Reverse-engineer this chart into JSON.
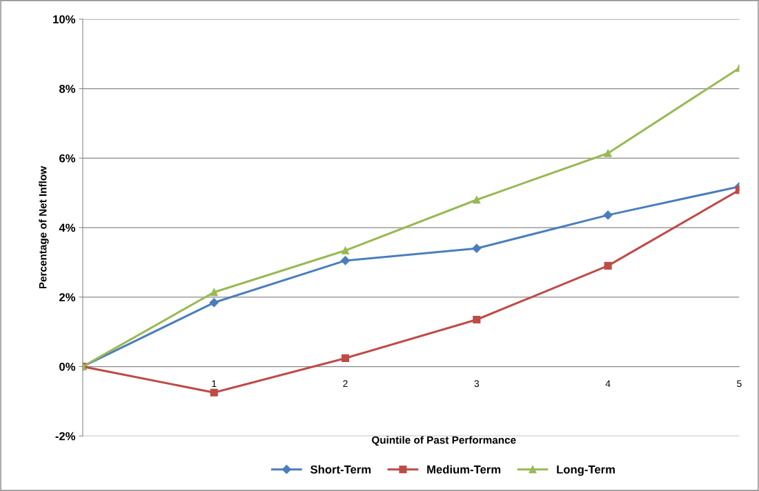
{
  "chart_data": {
    "type": "line",
    "xlabel": "Quintile of Past Performance",
    "ylabel": "Percentage of Net Inflow",
    "x": [
      0,
      1,
      2,
      3,
      4,
      5
    ],
    "series": [
      {
        "name": "Short-Term",
        "color": "#4a7ebb",
        "marker": "diamond",
        "values": [
          0,
          1.84,
          3.05,
          3.4,
          4.36,
          5.18
        ]
      },
      {
        "name": "Medium-Term",
        "color": "#be4b48",
        "marker": "square",
        "values": [
          0,
          -0.75,
          0.24,
          1.35,
          2.9,
          5.08
        ]
      },
      {
        "name": "Long-Term",
        "color": "#98b954",
        "marker": "triangle",
        "values": [
          0,
          2.14,
          3.34,
          4.8,
          6.14,
          8.59
        ]
      }
    ],
    "xlim": [
      0,
      5
    ],
    "xticks": [
      1,
      2,
      3,
      4,
      5
    ],
    "ylim": [
      -2,
      10
    ],
    "yticks": [
      {
        "value": -2,
        "label": "-2%"
      },
      {
        "value": 0,
        "label": "0%"
      },
      {
        "value": 2,
        "label": "2%"
      },
      {
        "value": 4,
        "label": "4%"
      },
      {
        "value": 6,
        "label": "6%"
      },
      {
        "value": 8,
        "label": "8%"
      },
      {
        "value": 10,
        "label": "10%"
      }
    ],
    "grid": "y",
    "legend": "bottom",
    "line_style": "solid"
  }
}
